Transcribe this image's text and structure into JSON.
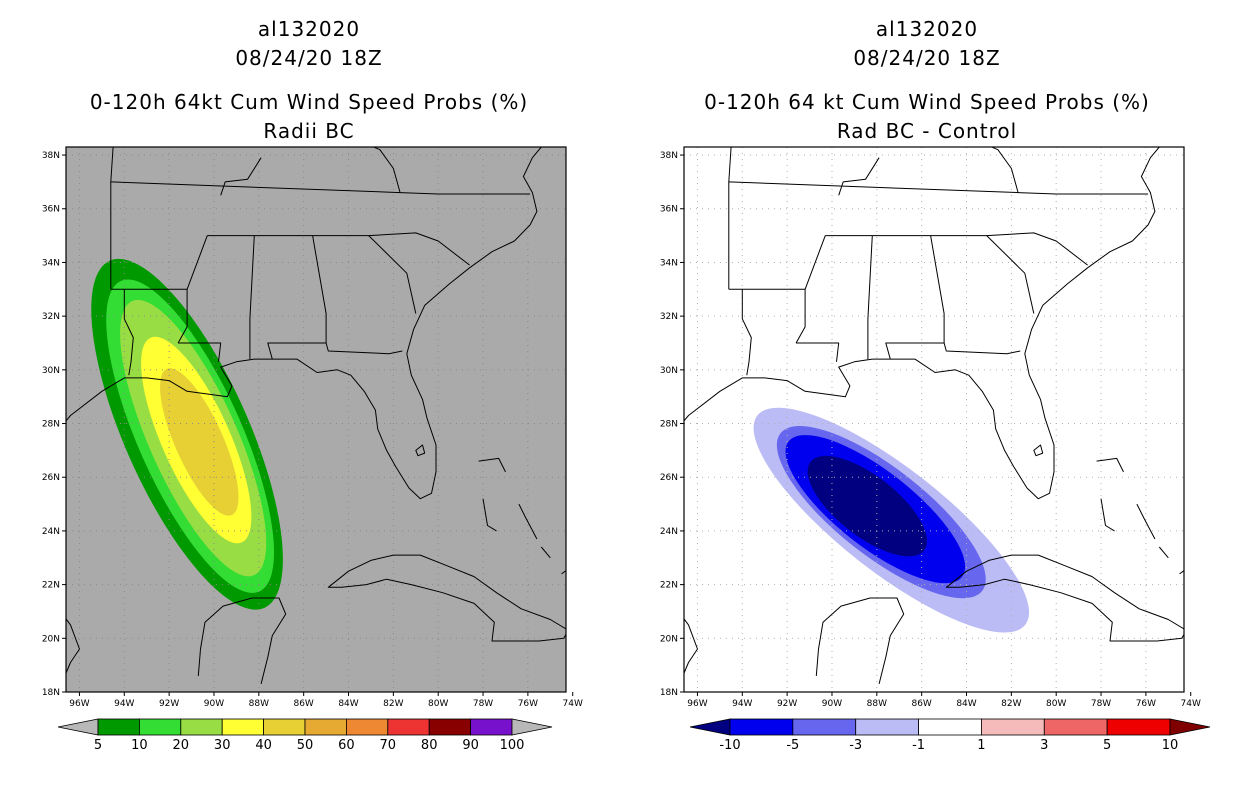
{
  "panels": [
    {
      "title_lines": [
        "al132020",
        "08/24/20 18Z",
        "0-120h 64kt Cum Wind Speed Probs (%)",
        "Radii BC"
      ],
      "background": "#aaaaaa",
      "lat_labels": [
        "38N",
        "36N",
        "34N",
        "32N",
        "30N",
        "28N",
        "26N",
        "24N",
        "22N",
        "20N",
        "18N"
      ],
      "lon_labels": [
        "96W",
        "94W",
        "92W",
        "90W",
        "88W",
        "86W",
        "84W",
        "82W",
        "80W",
        "78W",
        "76W",
        "74W"
      ],
      "colorbar": {
        "colors": [
          "#009900",
          "#33dd33",
          "#99dd44",
          "#ffff33",
          "#e6d033",
          "#e6aa33",
          "#ee8833",
          "#ee3333",
          "#880000",
          "#7711cc"
        ],
        "end_colors": [
          "#b8b8b8",
          "#b8b8b8"
        ],
        "labels": [
          "5",
          "10",
          "20",
          "30",
          "40",
          "50",
          "60",
          "70",
          "80",
          "90",
          "100"
        ]
      }
    },
    {
      "title_lines": [
        "al132020",
        "08/24/20 18Z",
        "0-120h 64 kt Cum Wind Speed Probs (%)",
        "Rad BC - Control"
      ],
      "background": "#ffffff",
      "lat_labels": [
        "38N",
        "36N",
        "34N",
        "32N",
        "30N",
        "28N",
        "26N",
        "24N",
        "22N",
        "20N",
        "18N"
      ],
      "lon_labels": [
        "96W",
        "94W",
        "92W",
        "90W",
        "88W",
        "86W",
        "84W",
        "82W",
        "80W",
        "78W",
        "76W",
        "74W"
      ],
      "colorbar": {
        "colors": [
          "#0000ee",
          "#6666ee",
          "#bbbbf5",
          "#ffffff",
          "#f5bbbb",
          "#ee6666",
          "#ee0000"
        ],
        "end_colors": [
          "#000080",
          "#800000"
        ],
        "labels": [
          "-10",
          "-5",
          "-3",
          "-1",
          "1",
          "3",
          "5",
          "10"
        ]
      }
    }
  ]
}
